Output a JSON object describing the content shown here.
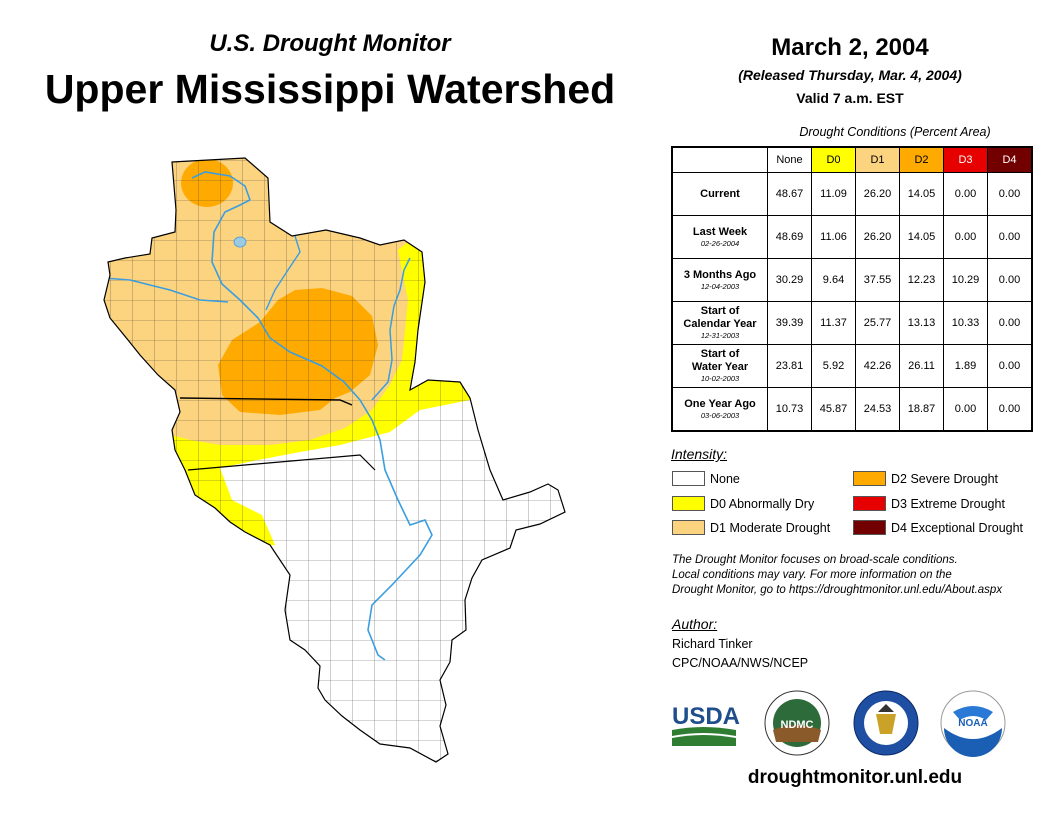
{
  "header": {
    "subtitle": "U.S. Drought Monitor",
    "title": "Upper Mississippi Watershed",
    "date": "March 2, 2004",
    "released": "(Released Thursday, Mar. 4, 2004)",
    "valid": "Valid 7 a.m. EST"
  },
  "table": {
    "caption": "Drought Conditions (Percent Area)",
    "columns": [
      {
        "label": "None",
        "color": "#ffffff"
      },
      {
        "label": "D0",
        "color": "#ffff00"
      },
      {
        "label": "D1",
        "color": "#fcd37f"
      },
      {
        "label": "D2",
        "color": "#ffaa00"
      },
      {
        "label": "D3",
        "color": "#e60000"
      },
      {
        "label": "D4",
        "color": "#730000"
      }
    ],
    "rows": [
      {
        "label": "Current",
        "label2": "",
        "date": "",
        "values": [
          "48.67",
          "11.09",
          "26.20",
          "14.05",
          "0.00",
          "0.00"
        ]
      },
      {
        "label": "Last Week",
        "label2": "",
        "date": "02-26-2004",
        "values": [
          "48.69",
          "11.06",
          "26.20",
          "14.05",
          "0.00",
          "0.00"
        ]
      },
      {
        "label": "3 Months Ago",
        "label2": "",
        "date": "12-04-2003",
        "values": [
          "30.29",
          "9.64",
          "37.55",
          "12.23",
          "10.29",
          "0.00"
        ]
      },
      {
        "label": "Start of",
        "label2": "Calendar Year",
        "date": "12-31-2003",
        "values": [
          "39.39",
          "11.37",
          "25.77",
          "13.13",
          "10.33",
          "0.00"
        ]
      },
      {
        "label": "Start of",
        "label2": "Water Year",
        "date": "10-02-2003",
        "values": [
          "23.81",
          "5.92",
          "42.26",
          "26.11",
          "1.89",
          "0.00"
        ]
      },
      {
        "label": "One Year Ago",
        "label2": "",
        "date": "03-06-2003",
        "values": [
          "10.73",
          "45.87",
          "24.53",
          "18.87",
          "0.00",
          "0.00"
        ]
      }
    ]
  },
  "legend": {
    "title": "Intensity:",
    "items": [
      {
        "label": "None",
        "color": "#ffffff"
      },
      {
        "label": "D0 Abnormally Dry",
        "color": "#ffff00"
      },
      {
        "label": "D1 Moderate Drought",
        "color": "#fcd37f"
      },
      {
        "label": "D2 Severe Drought",
        "color": "#ffaa00"
      },
      {
        "label": "D3 Extreme Drought",
        "color": "#e60000"
      },
      {
        "label": "D4 Exceptional Drought",
        "color": "#730000"
      }
    ]
  },
  "note": {
    "line1": "The Drought Monitor focuses on broad-scale conditions.",
    "line2": "Local conditions may vary. For more information on the",
    "line3": "Drought Monitor, go to https://droughtmonitor.unl.edu/About.aspx"
  },
  "author": {
    "title": "Author:",
    "name": "Richard Tinker",
    "org": "CPC/NOAA/NWS/NCEP"
  },
  "logos": {
    "usda": "USDA",
    "ndmc": "NDMC",
    "noaa": "NOAA"
  },
  "website": "droughtmonitor.unl.edu",
  "colors": {
    "river": "#3a9ee0",
    "county_line": "#333333"
  }
}
